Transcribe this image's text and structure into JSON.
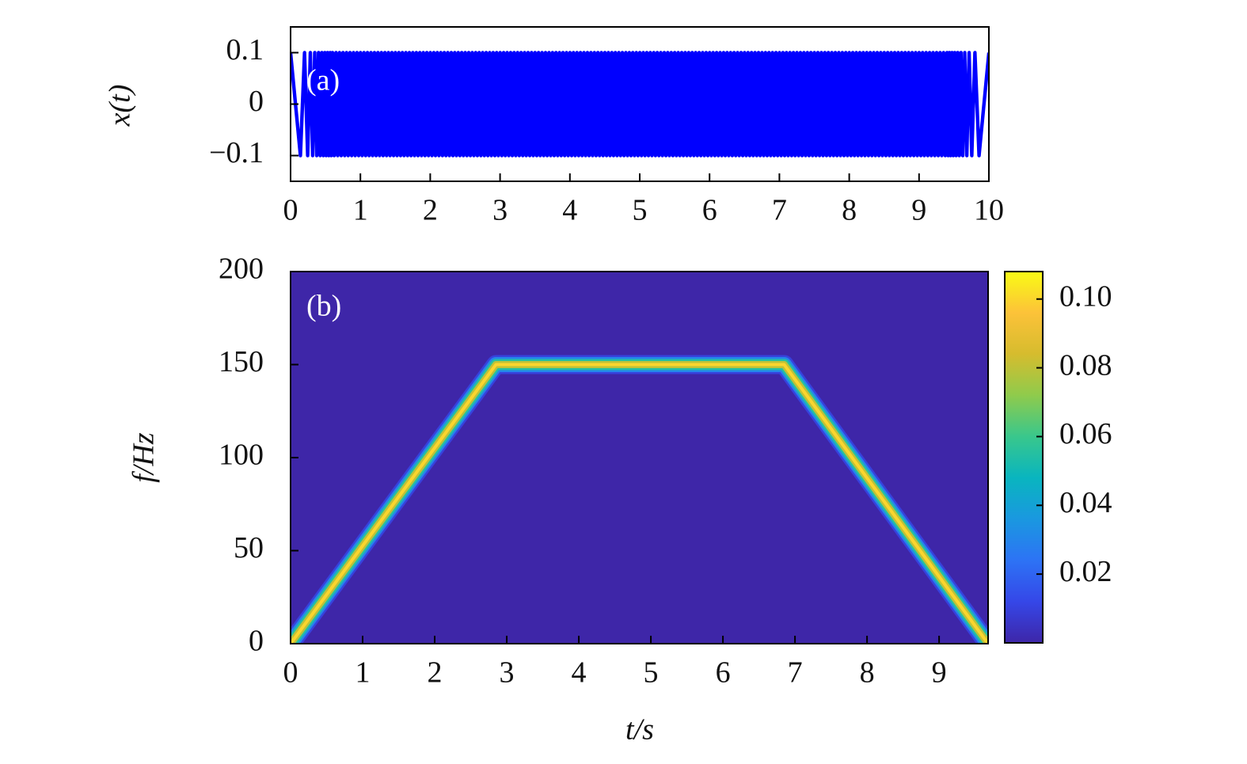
{
  "chart_data": [
    {
      "type": "line",
      "ylabel": "x(t)",
      "annotation": "(a)",
      "color": "#0000ff",
      "xlim": [
        0,
        10
      ],
      "xticks": [
        0,
        1,
        2,
        3,
        4,
        5,
        6,
        7,
        8,
        9,
        10
      ],
      "ylim": [
        -0.15,
        0.15
      ],
      "yticks": [
        0.1,
        0,
        {
          "value": -0.1,
          "label": "−0.1"
        }
      ],
      "x": [
        0,
        0.141,
        0.2,
        0.245,
        0.283,
        0.316,
        0.346,
        0.374,
        0.4,
        0.424,
        0.447,
        0.469,
        0.49,
        0.51,
        0.529,
        0.548,
        0.566,
        0.583,
        0.6,
        0.625,
        0.65,
        0.675,
        0.7,
        0.725,
        0.75,
        0.775,
        0.8,
        0.825,
        0.85,
        0.875,
        0.9,
        0.925,
        0.95,
        0.975,
        1,
        1.025,
        1.05,
        1.075,
        1.1,
        1.125,
        1.15,
        1.175,
        1.2,
        1.225,
        1.25,
        1.275,
        1.3,
        1.325,
        1.35,
        1.375,
        1.4,
        1.425,
        1.45,
        1.475,
        1.5,
        1.525,
        1.55,
        1.575,
        1.6,
        1.625,
        1.65,
        1.675,
        1.7,
        1.725,
        1.75,
        1.775,
        1.8,
        1.825,
        1.85,
        1.875,
        1.9,
        1.925,
        1.95,
        1.975,
        2,
        2.025,
        2.05,
        2.075,
        2.1,
        2.125,
        2.15,
        2.175,
        2.2,
        2.225,
        2.25,
        2.275,
        2.3,
        2.325,
        2.35,
        2.375,
        2.4,
        2.425,
        2.45,
        2.475,
        2.5,
        2.525,
        2.55,
        2.575,
        2.6,
        2.625,
        2.65,
        2.675,
        2.7,
        2.725,
        2.75,
        2.775,
        2.8,
        2.825,
        2.85,
        2.875,
        2.9,
        2.925,
        2.95,
        2.975,
        3,
        3.025,
        3.05,
        3.075,
        3.1,
        3.125,
        3.15,
        3.175,
        3.2,
        3.225,
        3.25,
        3.275,
        3.3,
        3.325,
        3.35,
        3.375,
        3.4,
        3.425,
        3.45,
        3.475,
        3.5,
        3.525,
        3.55,
        3.575,
        3.6,
        3.625,
        3.65,
        3.675,
        3.7,
        3.725,
        3.75,
        3.775,
        3.8,
        3.825,
        3.85,
        3.875,
        3.9,
        3.925,
        3.95,
        3.975,
        4,
        4.025,
        4.05,
        4.075,
        4.1,
        4.125,
        4.15,
        4.175,
        4.2,
        4.225,
        4.25,
        4.275,
        4.3,
        4.325,
        4.35,
        4.375,
        4.4,
        4.425,
        4.45,
        4.475,
        4.5,
        4.525,
        4.55,
        4.575,
        4.6,
        4.625,
        4.65,
        4.675,
        4.7,
        4.725,
        4.75,
        4.775,
        4.8,
        4.825,
        4.85,
        4.875,
        4.9,
        4.925,
        4.95,
        4.975,
        5,
        5.025,
        5.05,
        5.075,
        5.1,
        5.125,
        5.15,
        5.175,
        5.2,
        5.225,
        5.25,
        5.275,
        5.3,
        5.325,
        5.35,
        5.375,
        5.4,
        5.425,
        5.45,
        5.475,
        5.5,
        5.525,
        5.55,
        5.575,
        5.6,
        5.625,
        5.65,
        5.675,
        5.7,
        5.725,
        5.75,
        5.775,
        5.8,
        5.825,
        5.85,
        5.875,
        5.9,
        5.925,
        5.95,
        5.975,
        6,
        6.025,
        6.05,
        6.075,
        6.1,
        6.125,
        6.15,
        6.175,
        6.2,
        6.225,
        6.25,
        6.275,
        6.3,
        6.325,
        6.35,
        6.375,
        6.4,
        6.425,
        6.45,
        6.475,
        6.5,
        6.525,
        6.55,
        6.575,
        6.6,
        6.625,
        6.65,
        6.675,
        6.7,
        6.725,
        6.75,
        6.775,
        6.8,
        6.825,
        6.85,
        6.875,
        6.9,
        6.925,
        6.95,
        6.975,
        7,
        7.025,
        7.05,
        7.075,
        7.1,
        7.125,
        7.15,
        7.175,
        7.2,
        7.225,
        7.25,
        7.275,
        7.3,
        7.325,
        7.35,
        7.375,
        7.4,
        7.425,
        7.45,
        7.475,
        7.5,
        7.525,
        7.55,
        7.575,
        7.6,
        7.625,
        7.65,
        7.675,
        7.7,
        7.725,
        7.75,
        7.775,
        7.8,
        7.825,
        7.85,
        7.875,
        7.9,
        7.925,
        7.95,
        7.975,
        8,
        8.025,
        8.05,
        8.075,
        8.1,
        8.125,
        8.15,
        8.175,
        8.2,
        8.225,
        8.25,
        8.275,
        8.3,
        8.325,
        8.35,
        8.375,
        8.4,
        8.425,
        8.45,
        8.475,
        8.5,
        8.525,
        8.55,
        8.575,
        8.6,
        8.625,
        8.65,
        8.675,
        8.7,
        8.725,
        8.75,
        8.775,
        8.8,
        8.825,
        8.85,
        8.875,
        8.9,
        8.925,
        8.95,
        8.975,
        9,
        9.025,
        9.05,
        9.075,
        9.1,
        9.125,
        9.15,
        9.175,
        9.2,
        9.225,
        9.25,
        9.275,
        9.3,
        9.325,
        9.35,
        9.375,
        9.4,
        9.417,
        9.434,
        9.452,
        9.471,
        9.49,
        9.51,
        9.531,
        9.553,
        9.576,
        9.6,
        9.626,
        9.654,
        9.684,
        9.717,
        9.755,
        9.8,
        9.859,
        10
      ],
      "values": [
        0.1,
        -0.1,
        0.1,
        -0.1,
        0.1,
        -0.1,
        0.1,
        -0.1,
        0.1,
        -0.1,
        0.1,
        -0.1,
        0.1,
        -0.1,
        0.1,
        -0.1,
        0.1,
        -0.1,
        0.1,
        -0.1,
        0.1,
        -0.1,
        0.1,
        -0.1,
        0.1,
        -0.1,
        0.1,
        -0.1,
        0.1,
        -0.1,
        0.1,
        -0.1,
        0.1,
        -0.1,
        0.1,
        -0.1,
        0.1,
        -0.1,
        0.1,
        -0.1,
        0.1,
        -0.1,
        0.1,
        -0.1,
        0.1,
        -0.1,
        0.1,
        -0.1,
        0.1,
        -0.1,
        0.1,
        -0.1,
        0.1,
        -0.1,
        0.1,
        -0.1,
        0.1,
        -0.1,
        0.1,
        -0.1,
        0.1,
        -0.1,
        0.1,
        -0.1,
        0.1,
        -0.1,
        0.1,
        -0.1,
        0.1,
        -0.1,
        0.1,
        -0.1,
        0.1,
        -0.1,
        0.1,
        -0.1,
        0.1,
        -0.1,
        0.1,
        -0.1,
        0.1,
        -0.1,
        0.1,
        -0.1,
        0.1,
        -0.1,
        0.1,
        -0.1,
        0.1,
        -0.1,
        0.1,
        -0.1,
        0.1,
        -0.1,
        0.1,
        -0.1,
        0.1,
        -0.1,
        0.1,
        -0.1,
        0.1,
        -0.1,
        0.1,
        -0.1,
        0.1,
        -0.1,
        0.1,
        -0.1,
        0.1,
        -0.1,
        0.1,
        -0.1,
        0.1,
        -0.1,
        0.1,
        -0.1,
        0.1,
        -0.1,
        0.1,
        -0.1,
        0.1,
        -0.1,
        0.1,
        -0.1,
        0.1,
        -0.1,
        0.1,
        -0.1,
        0.1,
        -0.1,
        0.1,
        -0.1,
        0.1,
        -0.1,
        0.1,
        -0.1,
        0.1,
        -0.1,
        0.1,
        -0.1,
        0.1,
        -0.1,
        0.1,
        -0.1,
        0.1,
        -0.1,
        0.1,
        -0.1,
        0.1,
        -0.1,
        0.1,
        -0.1,
        0.1,
        -0.1,
        0.1,
        -0.1,
        0.1,
        -0.1,
        0.1,
        -0.1,
        0.1,
        -0.1,
        0.1,
        -0.1,
        0.1,
        -0.1,
        0.1,
        -0.1,
        0.1,
        -0.1,
        0.1,
        -0.1,
        0.1,
        -0.1,
        0.1,
        -0.1,
        0.1,
        -0.1,
        0.1,
        -0.1,
        0.1,
        -0.1,
        0.1,
        -0.1,
        0.1,
        -0.1,
        0.1,
        -0.1,
        0.1,
        -0.1,
        0.1,
        -0.1,
        0.1,
        -0.1,
        0.1,
        -0.1,
        0.1,
        -0.1,
        0.1,
        -0.1,
        0.1,
        -0.1,
        0.1,
        -0.1,
        0.1,
        -0.1,
        0.1,
        -0.1,
        0.1,
        -0.1,
        0.1,
        -0.1,
        0.1,
        -0.1,
        0.1,
        -0.1,
        0.1,
        -0.1,
        0.1,
        -0.1,
        0.1,
        -0.1,
        0.1,
        -0.1,
        0.1,
        -0.1,
        0.1,
        -0.1,
        0.1,
        -0.1,
        0.1,
        -0.1,
        0.1,
        -0.1,
        0.1,
        -0.1,
        0.1,
        -0.1,
        0.1,
        -0.1,
        0.1,
        -0.1,
        0.1,
        -0.1,
        0.1,
        -0.1,
        0.1,
        -0.1,
        0.1,
        -0.1,
        0.1,
        -0.1,
        0.1,
        -0.1,
        0.1,
        -0.1,
        0.1,
        -0.1,
        0.1,
        -0.1,
        0.1,
        -0.1,
        0.1,
        -0.1,
        0.1,
        -0.1,
        0.1,
        -0.1,
        0.1,
        -0.1,
        0.1,
        -0.1,
        0.1,
        -0.1,
        0.1,
        -0.1,
        0.1,
        -0.1,
        0.1,
        -0.1,
        0.1,
        -0.1,
        0.1,
        -0.1,
        0.1,
        -0.1,
        0.1,
        -0.1,
        0.1,
        -0.1,
        0.1,
        -0.1,
        0.1,
        -0.1,
        0.1,
        -0.1,
        0.1,
        -0.1,
        0.1,
        -0.1,
        0.1,
        -0.1,
        0.1,
        -0.1,
        0.1,
        -0.1,
        0.1,
        -0.1,
        0.1,
        -0.1,
        0.1,
        -0.1,
        0.1,
        -0.1,
        0.1,
        -0.1,
        0.1,
        -0.1,
        0.1,
        -0.1,
        0.1,
        -0.1,
        0.1,
        -0.1,
        0.1,
        -0.1,
        0.1,
        -0.1,
        0.1,
        -0.1,
        0.1,
        -0.1,
        0.1,
        -0.1,
        0.1,
        -0.1,
        0.1,
        -0.1,
        0.1,
        -0.1,
        0.1,
        -0.1,
        0.1,
        -0.1,
        0.1,
        -0.1,
        0.1,
        -0.1,
        0.1,
        -0.1,
        0.1,
        -0.1,
        0.1,
        -0.1,
        0.1,
        -0.1,
        0.1,
        -0.1,
        0.1,
        -0.1,
        0.1,
        -0.1,
        0.1,
        -0.1,
        0.1,
        -0.1,
        0.1,
        -0.1,
        0.1,
        -0.1,
        0.1,
        -0.1,
        0.1,
        -0.1,
        0.1,
        -0.1,
        0.1,
        -0.1,
        0.1,
        -0.1,
        0.1,
        -0.1,
        0.1,
        -0.1,
        0.1,
        -0.1,
        0.1,
        -0.1,
        0.1
      ]
    },
    {
      "type": "spectrogram",
      "xlabel": "t/s",
      "ylabel": "f/Hz",
      "annotation": "(b)",
      "xlim": [
        0,
        9.68
      ],
      "xticks": [
        0,
        1,
        2,
        3,
        4,
        5,
        6,
        7,
        8,
        9
      ],
      "ylim": [
        0,
        200
      ],
      "yticks": [
        0,
        50,
        100,
        150,
        200
      ],
      "x": [
        0,
        2.85,
        6.85,
        9.68
      ],
      "values": [
        0,
        150,
        150,
        0
      ],
      "peak": 0.1,
      "clim": [
        0,
        0.108
      ],
      "cticks": [
        0.02,
        0.04,
        0.06,
        0.08,
        {
          "value": 0.1,
          "label": "0.10"
        }
      ],
      "colormap": [
        "#3e26a8",
        "#3547e8",
        "#2d73f5",
        "#1a98e0",
        "#09b5bf",
        "#39c78c",
        "#8fcb4c",
        "#d6bc2e",
        "#fcc239",
        "#f9fb15"
      ]
    }
  ]
}
